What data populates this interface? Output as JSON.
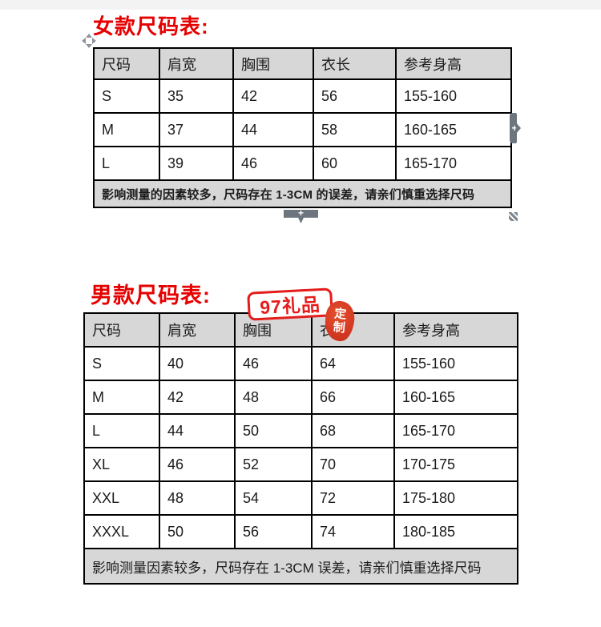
{
  "women_section": {
    "title": "女款尺码表:",
    "table": {
      "columns": [
        "尺码",
        "肩宽",
        "胸围",
        "衣长",
        "参考身高"
      ],
      "rows": [
        [
          "S",
          "35",
          "42",
          "56",
          "155-160"
        ],
        [
          "M",
          "37",
          "44",
          "58",
          "160-165"
        ],
        [
          "L",
          "39",
          "46",
          "60",
          "165-170"
        ]
      ],
      "note": "影响测量的因素较多，尺码存在 1-3CM 的误差，请亲们慎重选择尺码"
    }
  },
  "men_section": {
    "title": "男款尺码表:",
    "table": {
      "columns": [
        "尺码",
        "肩宽",
        "胸围",
        "衣长",
        "参考身高"
      ],
      "rows": [
        [
          "S",
          "40",
          "46",
          "64",
          "155-160"
        ],
        [
          "M",
          "42",
          "48",
          "66",
          "160-165"
        ],
        [
          "L",
          "44",
          "50",
          "68",
          "165-170"
        ],
        [
          "XL",
          "46",
          "52",
          "70",
          "170-175"
        ],
        [
          "XXL",
          "48",
          "54",
          "72",
          "175-180"
        ],
        [
          "XXXL",
          "50",
          "56",
          "74",
          "180-185"
        ]
      ],
      "note": "影响测量因素较多，尺码存在 1-3CM 误差，请亲们慎重选择尺码"
    }
  },
  "watermark": {
    "text": "97礼品",
    "seal_char_top": "定",
    "seal_char_bottom": "制"
  },
  "handles": {
    "plus": "+",
    "icons": [
      "table-move-icon",
      "insert-column-plus-icon",
      "insert-row-plus-icon",
      "table-resize-icon"
    ]
  },
  "colors": {
    "title_red": "#e60000",
    "watermark_red": "#e51c1c",
    "seal_red": "#d63a22",
    "header_row_bg": "#d7d7d7",
    "note_row_bg": "#d7d7d7",
    "handle_gray": "#6d757e",
    "border_black": "#000000"
  }
}
